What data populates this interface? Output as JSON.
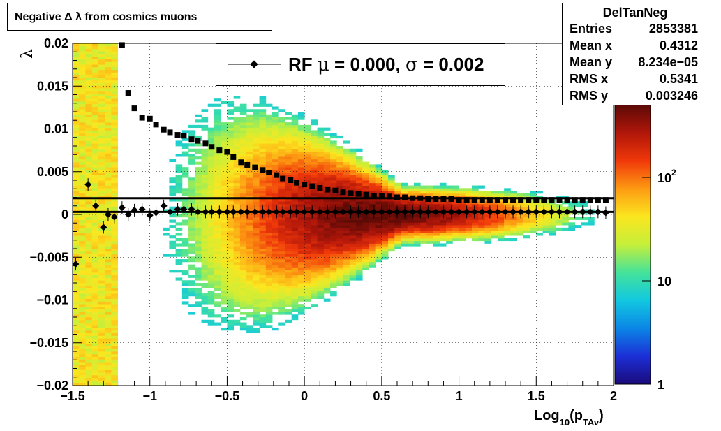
{
  "title": "Negative Δ λ from cosmics muons",
  "stats": {
    "name": "DelTanNeg",
    "rows": [
      {
        "label": "Entries",
        "value": "2853381"
      },
      {
        "label": "Mean x",
        "value": "0.4312"
      },
      {
        "label": "Mean y",
        "value": "8.234e−05"
      },
      {
        "label": "RMS x",
        "value": "0.5341"
      },
      {
        "label": "RMS y",
        "value": "0.003246"
      }
    ]
  },
  "legend": {
    "prefix": "RF",
    "mu_sym": "μ",
    "mu_text": " =  0.000, ",
    "sigma_sym": "σ",
    "sigma_text": " =   0.002"
  },
  "colors": {
    "marker": "#000000",
    "palette": [
      "#1a0a7a",
      "#1c2fd6",
      "#0b86e6",
      "#12c8e0",
      "#45e39a",
      "#c6ef3a",
      "#fbe61f",
      "#fd9a12",
      "#f0380a",
      "#b0160a",
      "#5c0a06"
    ]
  },
  "chart_data": {
    "type": "heatmap",
    "title": "Negative Δ λ from cosmics muons",
    "xlabel": "Log10(pTAv)",
    "ylabel": "λ",
    "xlim": [
      -1.5,
      2
    ],
    "ylim": [
      -0.02,
      0.02
    ],
    "log_z": true,
    "grid": true,
    "x_ticks": [
      "−1.5",
      "−1",
      "−0.5",
      "0",
      "0.5",
      "1",
      "1.5",
      "2"
    ],
    "y_ticks": [
      "−0.02",
      "−0.015",
      "−0.01",
      "−0.005",
      "0",
      "0.005",
      "0.01",
      "0.015",
      "0.02"
    ],
    "z_ticks": [
      "1",
      "10",
      "10^2"
    ],
    "stat_boxes": {
      "entries": 2853381,
      "mean_x": 0.4312,
      "mean_y": 8.234e-05,
      "rms_x": 0.5341,
      "rms_y": 0.003246
    },
    "series": [
      {
        "name": "RF μ = 0.000, σ = 0.002",
        "x": [
          -1.48,
          -1.4,
          -1.35,
          -1.3,
          -1.27,
          -1.23,
          -1.18,
          -1.14,
          -1.1,
          -1.05,
          -1.0,
          -0.96,
          -0.91,
          -0.87,
          -0.82,
          -0.78,
          -0.73,
          -0.69,
          -0.64,
          -0.6,
          -0.55,
          -0.5,
          -0.46,
          -0.41,
          -0.37,
          -0.32,
          -0.27,
          -0.23,
          -0.18,
          -0.14,
          -0.09,
          -0.05,
          0.0,
          0.05,
          0.1,
          0.15,
          0.2,
          0.25,
          0.3,
          0.35,
          0.4,
          0.45,
          0.5,
          0.55,
          0.6,
          0.65,
          0.7,
          0.75,
          0.8,
          0.85,
          0.9,
          0.95,
          1.0,
          1.05,
          1.1,
          1.15,
          1.2,
          1.25,
          1.3,
          1.35,
          1.4,
          1.45,
          1.5,
          1.55,
          1.6,
          1.65,
          1.7,
          1.75,
          1.8,
          1.85,
          1.9,
          1.95
        ],
        "y": [
          -0.0058,
          0.0035,
          0.001,
          -0.0015,
          0.0,
          -0.0003,
          0.0008,
          0.0,
          0.0005,
          0.0006,
          -0.0001,
          0.0002,
          0.001,
          0.0003,
          0.0006,
          0.0006,
          0.0006,
          0.0003,
          0.0003,
          0.0003,
          0.0003,
          0.0003,
          0.0003,
          0.0003,
          0.0003,
          0.0003,
          0.0003,
          0.0003,
          0.0003,
          0.0003,
          0.0003,
          0.0003,
          0.0003,
          0.0003,
          0.0003,
          0.0003,
          0.0003,
          0.0003,
          0.0003,
          0.0003,
          0.0003,
          0.0003,
          0.0003,
          0.0003,
          0.0003,
          0.0003,
          0.0003,
          0.0003,
          0.0003,
          0.0003,
          0.0003,
          0.0003,
          0.0003,
          0.0003,
          0.0003,
          0.0003,
          0.0003,
          0.0003,
          0.0003,
          0.0003,
          0.0003,
          0.0003,
          0.0003,
          0.0003,
          0.0003,
          0.0003,
          0.0003,
          0.0003,
          0.0003,
          0.0003,
          0.0003,
          0.0002
        ]
      },
      {
        "x": [
          -1.18,
          -1.14,
          -1.1,
          -1.05,
          -1.0,
          -0.96,
          -0.91,
          -0.87,
          -0.82,
          -0.78,
          -0.73,
          -0.69,
          -0.64,
          -0.6,
          -0.55,
          -0.5,
          -0.46,
          -0.41,
          -0.37,
          -0.32,
          -0.27,
          -0.23,
          -0.18,
          -0.14,
          -0.09,
          -0.05,
          0.0,
          0.05,
          0.1,
          0.15,
          0.2,
          0.25,
          0.3,
          0.35,
          0.4,
          0.45,
          0.5,
          0.55,
          0.6,
          0.65,
          0.7,
          0.75,
          0.8,
          0.85,
          0.9,
          0.95,
          1.0,
          1.05,
          1.1,
          1.15,
          1.2,
          1.25,
          1.3,
          1.35,
          1.4,
          1.45,
          1.5,
          1.55,
          1.6,
          1.65,
          1.7,
          1.75,
          1.8,
          1.85,
          1.9,
          1.95
        ],
        "y": [
          0.0198,
          0.0142,
          0.0124,
          0.0113,
          0.0112,
          0.0105,
          0.0099,
          0.0096,
          0.0093,
          0.0092,
          0.0088,
          0.0086,
          0.0083,
          0.0079,
          0.0075,
          0.0073,
          0.0067,
          0.0061,
          0.0058,
          0.0055,
          0.0052,
          0.0049,
          0.0046,
          0.0042,
          0.004,
          0.0037,
          0.0035,
          0.0033,
          0.0031,
          0.0029,
          0.0028,
          0.0026,
          0.0025,
          0.0024,
          0.0023,
          0.0022,
          0.0022,
          0.0021,
          0.002,
          0.002,
          0.0019,
          0.0019,
          0.0018,
          0.0018,
          0.0018,
          0.0018,
          0.0017,
          0.0017,
          0.0017,
          0.0017,
          0.0017,
          0.0017,
          0.0017,
          0.0017,
          0.0017,
          0.0017,
          0.0017,
          0.0017,
          0.0017,
          0.0017,
          0.0017,
          0.0017,
          0.0017,
          0.0017,
          0.0017,
          0.0017
        ]
      }
    ],
    "fit_lines": [
      {
        "y": 0.0003
      },
      {
        "y": 0.0019
      }
    ]
  }
}
